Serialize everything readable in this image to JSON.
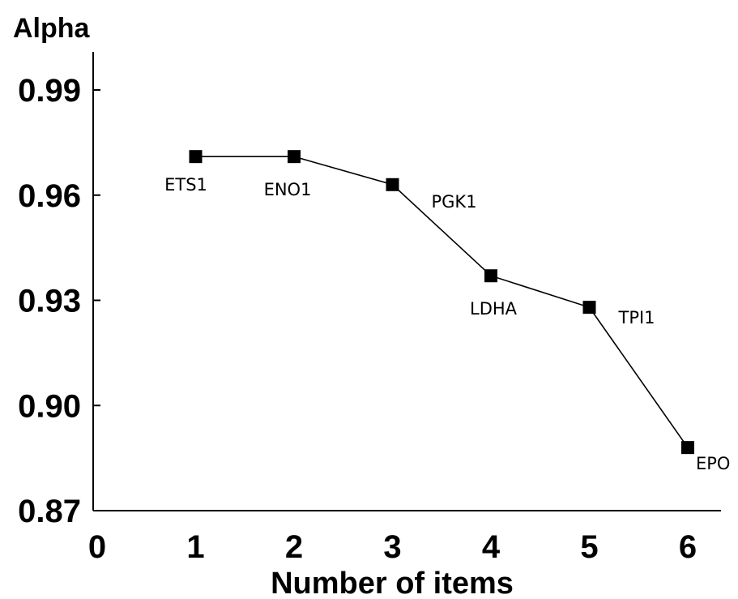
{
  "chart_data": {
    "type": "line",
    "title": "",
    "xlabel": "Number of items",
    "ylabel": "Alpha",
    "xlim": [
      0,
      6
    ],
    "ylim": [
      0.87,
      0.99
    ],
    "xticks": [
      "0",
      "1",
      "2",
      "3",
      "4",
      "5",
      "6"
    ],
    "yticks": [
      "0.87",
      "0.90",
      "0.93",
      "0.96",
      "0.99"
    ],
    "grid": false,
    "legend": "none",
    "marker": "square",
    "series": [
      {
        "x": [
          1,
          2,
          3,
          4,
          5,
          6
        ],
        "y": [
          0.971,
          0.971,
          0.963,
          0.937,
          0.928,
          0.888
        ],
        "point_labels": [
          "ETS1",
          "ENO1",
          "PGK1",
          "LDHA",
          "TPI1",
          "EPO"
        ]
      }
    ],
    "colors": {
      "line": "#000000",
      "marker": "#000000",
      "axis": "#000000"
    }
  }
}
